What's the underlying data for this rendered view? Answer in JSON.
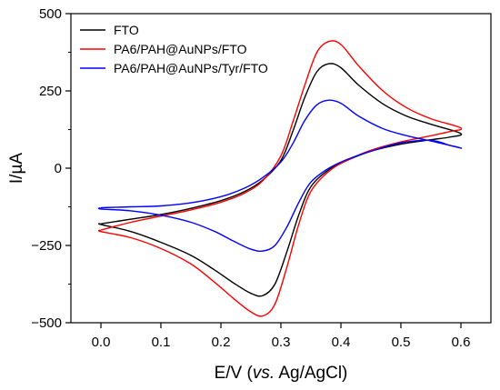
{
  "chart_data": {
    "type": "line",
    "xlabel_parts": [
      "E/V (",
      "vs.",
      " Ag/AgCl)"
    ],
    "ylabel": "I/µA",
    "xlim": [
      -0.05,
      0.65
    ],
    "ylim": [
      -500,
      500
    ],
    "x_ticks": [
      "0.0",
      "0.1",
      "0.2",
      "0.3",
      "0.4",
      "0.5",
      "0.6"
    ],
    "x_tick_values": [
      0.0,
      0.1,
      0.2,
      0.3,
      0.4,
      0.5,
      0.6
    ],
    "y_ticks": [
      "−500",
      "−250",
      "0",
      "250",
      "500"
    ],
    "y_tick_values": [
      -500,
      -250,
      0,
      250,
      500
    ],
    "legend_position": "top-left",
    "grid": false,
    "series": [
      {
        "name": "FTO",
        "color": "#000000",
        "points": [
          [
            0.0,
            -180
          ],
          [
            0.05,
            -165
          ],
          [
            0.1,
            -150
          ],
          [
            0.15,
            -130
          ],
          [
            0.2,
            -105
          ],
          [
            0.24,
            -75
          ],
          [
            0.27,
            -38
          ],
          [
            0.3,
            25
          ],
          [
            0.32,
            120
          ],
          [
            0.34,
            230
          ],
          [
            0.36,
            312
          ],
          [
            0.38,
            338
          ],
          [
            0.4,
            325
          ],
          [
            0.43,
            268
          ],
          [
            0.47,
            208
          ],
          [
            0.51,
            168
          ],
          [
            0.55,
            142
          ],
          [
            0.6,
            112
          ],
          [
            0.58,
            100
          ],
          [
            0.55,
            92
          ],
          [
            0.5,
            78
          ],
          [
            0.45,
            55
          ],
          [
            0.41,
            25
          ],
          [
            0.38,
            -5
          ],
          [
            0.35,
            -60
          ],
          [
            0.33,
            -150
          ],
          [
            0.31,
            -270
          ],
          [
            0.29,
            -375
          ],
          [
            0.27,
            -412
          ],
          [
            0.25,
            -405
          ],
          [
            0.22,
            -370
          ],
          [
            0.19,
            -330
          ],
          [
            0.15,
            -282
          ],
          [
            0.1,
            -240
          ],
          [
            0.05,
            -205
          ],
          [
            0.0,
            -182
          ]
        ]
      },
      {
        "name": "PA6/PAH@AuNPs/FTO",
        "color": "#ff0000",
        "points": [
          [
            0.0,
            -200
          ],
          [
            0.05,
            -175
          ],
          [
            0.1,
            -155
          ],
          [
            0.15,
            -135
          ],
          [
            0.2,
            -110
          ],
          [
            0.24,
            -80
          ],
          [
            0.27,
            -40
          ],
          [
            0.3,
            40
          ],
          [
            0.32,
            150
          ],
          [
            0.34,
            270
          ],
          [
            0.36,
            375
          ],
          [
            0.38,
            410
          ],
          [
            0.4,
            400
          ],
          [
            0.43,
            330
          ],
          [
            0.47,
            250
          ],
          [
            0.51,
            195
          ],
          [
            0.55,
            160
          ],
          [
            0.6,
            130
          ],
          [
            0.58,
            118
          ],
          [
            0.55,
            105
          ],
          [
            0.5,
            85
          ],
          [
            0.45,
            58
          ],
          [
            0.41,
            25
          ],
          [
            0.38,
            -10
          ],
          [
            0.35,
            -75
          ],
          [
            0.33,
            -180
          ],
          [
            0.31,
            -320
          ],
          [
            0.29,
            -440
          ],
          [
            0.27,
            -478
          ],
          [
            0.25,
            -465
          ],
          [
            0.22,
            -420
          ],
          [
            0.19,
            -370
          ],
          [
            0.15,
            -310
          ],
          [
            0.1,
            -260
          ],
          [
            0.05,
            -225
          ],
          [
            0.0,
            -205
          ]
        ]
      },
      {
        "name": "PA6/PAH@AuNPs/Tyr/FTO",
        "color": "#0000ff",
        "points": [
          [
            0.0,
            -128
          ],
          [
            0.05,
            -125
          ],
          [
            0.1,
            -122
          ],
          [
            0.15,
            -112
          ],
          [
            0.2,
            -92
          ],
          [
            0.24,
            -64
          ],
          [
            0.27,
            -30
          ],
          [
            0.3,
            20
          ],
          [
            0.32,
            80
          ],
          [
            0.34,
            155
          ],
          [
            0.36,
            205
          ],
          [
            0.38,
            220
          ],
          [
            0.4,
            210
          ],
          [
            0.43,
            168
          ],
          [
            0.47,
            128
          ],
          [
            0.51,
            105
          ],
          [
            0.55,
            88
          ],
          [
            0.6,
            65
          ],
          [
            0.58,
            75
          ],
          [
            0.55,
            90
          ],
          [
            0.5,
            82
          ],
          [
            0.45,
            55
          ],
          [
            0.41,
            28
          ],
          [
            0.38,
            0
          ],
          [
            0.35,
            -45
          ],
          [
            0.33,
            -110
          ],
          [
            0.31,
            -190
          ],
          [
            0.29,
            -250
          ],
          [
            0.27,
            -268
          ],
          [
            0.25,
            -262
          ],
          [
            0.22,
            -235
          ],
          [
            0.19,
            -205
          ],
          [
            0.15,
            -175
          ],
          [
            0.1,
            -152
          ],
          [
            0.05,
            -138
          ],
          [
            0.0,
            -132
          ]
        ]
      }
    ]
  }
}
